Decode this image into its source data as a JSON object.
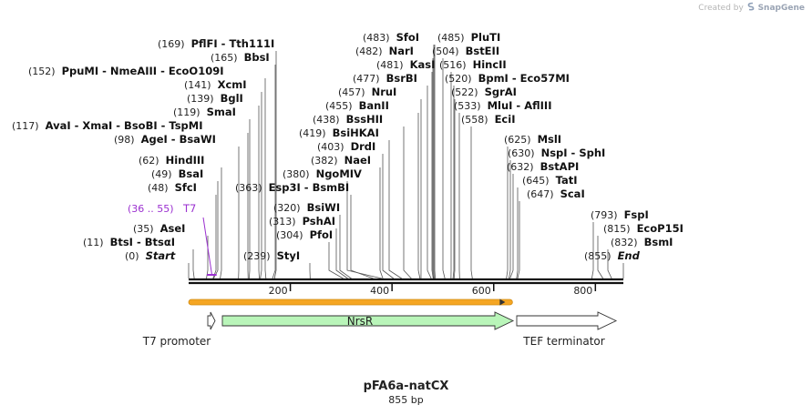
{
  "header": {
    "credit_prefix": "Created by",
    "credit_brand": "SnapGene",
    "logo_icon": "snapgene-logo-icon"
  },
  "plasmid": {
    "name": "pFA6a-natCX",
    "length_label": "855 bp",
    "length_bp": 855
  },
  "axis": {
    "ticks": [
      {
        "value": 200,
        "label": "200"
      },
      {
        "value": 400,
        "label": "400"
      },
      {
        "value": 600,
        "label": "600"
      },
      {
        "value": 800,
        "label": "800"
      }
    ]
  },
  "features": [
    {
      "name": "T7 promoter",
      "label": "T7 promoter",
      "start": 36,
      "end": 55,
      "strand": "+",
      "color": "#ffffff"
    },
    {
      "name": "NrsR",
      "label": "NrsR",
      "start": 66,
      "end": 637,
      "strand": "+",
      "color": "#b9f5b9"
    },
    {
      "name": "TEF terminator",
      "label": "TEF terminator",
      "start": 647,
      "end": 838,
      "strand": "+",
      "color": "#ffffff"
    }
  ],
  "orf": {
    "start": 0,
    "end": 637,
    "color": "#f5a623"
  },
  "primer": {
    "label": "T7",
    "range_label": "(36 .. 55)",
    "start": 36,
    "end": 55,
    "color": "#9b30d0"
  },
  "sites": [
    {
      "pos": "(169)",
      "name": "PflFI - Tth111I",
      "bp": 169
    },
    {
      "pos": "(165)",
      "name": "BbsI",
      "bp": 165
    },
    {
      "pos": "(152)",
      "name": "PpuMI - NmeAIII - EcoO109I",
      "bp": 152
    },
    {
      "pos": "(141)",
      "name": "XcmI",
      "bp": 141
    },
    {
      "pos": "(139)",
      "name": "BglI",
      "bp": 139
    },
    {
      "pos": "(119)",
      "name": "SmaI",
      "bp": 119
    },
    {
      "pos": "(117)",
      "name": "AvaI - XmaI - BsoBI - TspMI",
      "bp": 117
    },
    {
      "pos": "(98)",
      "name": "AgeI - BsaWI",
      "bp": 98
    },
    {
      "pos": "(62)",
      "name": "HindIII",
      "bp": 62
    },
    {
      "pos": "(49)",
      "name": "BsaI",
      "bp": 49
    },
    {
      "pos": "(48)",
      "name": "SfcI",
      "bp": 48
    },
    {
      "pos": "(35)",
      "name": "AseI",
      "bp": 35
    },
    {
      "pos": "(11)",
      "name": "BtsI - BtsαI",
      "bp": 11
    },
    {
      "pos": "(0)",
      "name": "Start",
      "bp": 0,
      "italic": true
    },
    {
      "pos": "(363)",
      "name": "Esp3I - BsmBI",
      "bp": 363
    },
    {
      "pos": "(380)",
      "name": "NgoMIV",
      "bp": 380
    },
    {
      "pos": "(382)",
      "name": "NaeI",
      "bp": 382
    },
    {
      "pos": "(403)",
      "name": "DrdI",
      "bp": 403
    },
    {
      "pos": "(419)",
      "name": "BsiHKAI",
      "bp": 419
    },
    {
      "pos": "(438)",
      "name": "BssHII",
      "bp": 438
    },
    {
      "pos": "(455)",
      "name": "BanII",
      "bp": 455
    },
    {
      "pos": "(457)",
      "name": "NruI",
      "bp": 457
    },
    {
      "pos": "(477)",
      "name": "BsrBI",
      "bp": 477
    },
    {
      "pos": "(481)",
      "name": "KasI",
      "bp": 481
    },
    {
      "pos": "(482)",
      "name": "NarI",
      "bp": 482
    },
    {
      "pos": "(483)",
      "name": "SfoI",
      "bp": 483
    },
    {
      "pos": "(485)",
      "name": "PluTI",
      "bp": 485
    },
    {
      "pos": "(504)",
      "name": "BstEII",
      "bp": 504
    },
    {
      "pos": "(516)",
      "name": "HincII",
      "bp": 516
    },
    {
      "pos": "(520)",
      "name": "BpmI - Eco57MI",
      "bp": 520
    },
    {
      "pos": "(522)",
      "name": "SgrAI",
      "bp": 522
    },
    {
      "pos": "(533)",
      "name": "MluI - AflIII",
      "bp": 533
    },
    {
      "pos": "(558)",
      "name": "EciI",
      "bp": 558
    },
    {
      "pos": "(320)",
      "name": "BsiWI",
      "bp": 320
    },
    {
      "pos": "(313)",
      "name": "PshAI",
      "bp": 313
    },
    {
      "pos": "(304)",
      "name": "PfoI",
      "bp": 304
    },
    {
      "pos": "(239)",
      "name": "StyI",
      "bp": 239
    },
    {
      "pos": "(625)",
      "name": "MslI",
      "bp": 625
    },
    {
      "pos": "(630)",
      "name": "NspI - SphI",
      "bp": 630
    },
    {
      "pos": "(632)",
      "name": "BstAPI",
      "bp": 632
    },
    {
      "pos": "(645)",
      "name": "TatI",
      "bp": 645
    },
    {
      "pos": "(647)",
      "name": "ScaI",
      "bp": 647
    },
    {
      "pos": "(793)",
      "name": "FspI",
      "bp": 793
    },
    {
      "pos": "(815)",
      "name": "EcoP15I",
      "bp": 815
    },
    {
      "pos": "(832)",
      "name": "BsmI",
      "bp": 832
    },
    {
      "pos": "(855)",
      "name": "End",
      "bp": 855,
      "italic": true
    }
  ]
}
